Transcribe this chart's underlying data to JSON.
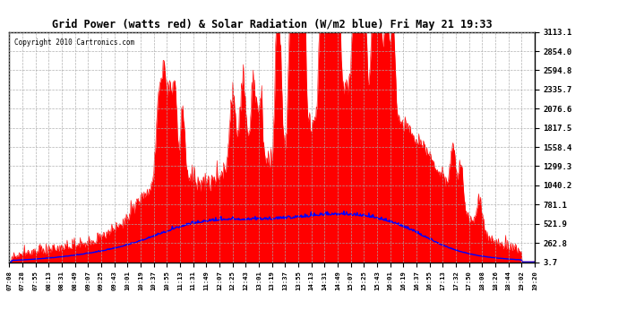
{
  "title": "Grid Power (watts red) & Solar Radiation (W/m2 blue) Fri May 21 19:33",
  "copyright": "Copyright 2010 Cartronics.com",
  "bg_color": "#ffffff",
  "plot_bg_color": "#ffffff",
  "grid_color": "#aaaaaa",
  "red_fill_color": "#ff0000",
  "blue_line_color": "#0000ff",
  "ytick_labels": [
    "3113.1",
    "2854.0",
    "2594.8",
    "2335.7",
    "2076.6",
    "1817.5",
    "1558.4",
    "1299.3",
    "1040.2",
    "781.1",
    "521.9",
    "262.8",
    "3.7"
  ],
  "ytick_values": [
    3113.1,
    2854.0,
    2594.8,
    2335.7,
    2076.6,
    1817.5,
    1558.4,
    1299.3,
    1040.2,
    781.1,
    521.9,
    262.8,
    3.7
  ],
  "xtick_labels": [
    "07:08",
    "07:28",
    "07:55",
    "08:13",
    "08:31",
    "08:49",
    "09:07",
    "09:25",
    "09:43",
    "10:01",
    "10:19",
    "10:37",
    "10:55",
    "11:13",
    "11:31",
    "11:49",
    "12:07",
    "12:25",
    "12:43",
    "13:01",
    "13:19",
    "13:37",
    "13:55",
    "14:13",
    "14:31",
    "14:49",
    "15:07",
    "15:25",
    "15:43",
    "16:01",
    "16:19",
    "16:37",
    "16:55",
    "17:13",
    "17:32",
    "17:50",
    "18:08",
    "18:26",
    "18:44",
    "19:02",
    "19:20"
  ],
  "ymin": 3.7,
  "ymax": 3113.1,
  "n_points": 800
}
